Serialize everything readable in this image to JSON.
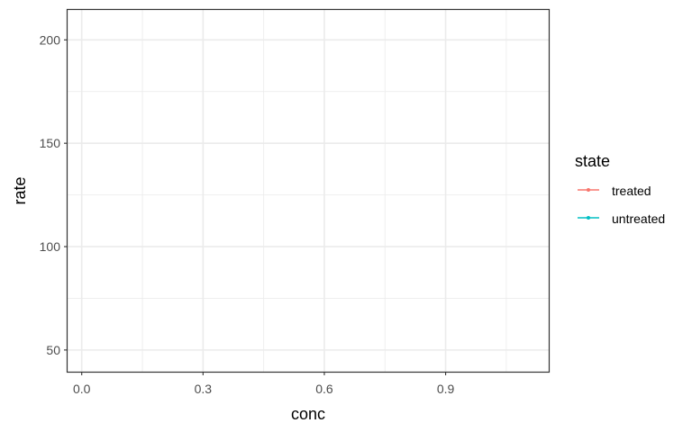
{
  "chart_data": {
    "type": "line",
    "title": "",
    "xlabel": "conc",
    "ylabel": "rate",
    "xlim": [
      -0.035,
      1.155
    ],
    "ylim": [
      39.5,
      214.5
    ],
    "x_ticks": [
      0.0,
      0.3,
      0.6,
      0.9
    ],
    "x_tick_labels": [
      "0.0",
      "0.3",
      "0.6",
      "0.9"
    ],
    "y_ticks": [
      50,
      100,
      150,
      200
    ],
    "y_tick_labels": [
      "50",
      "100",
      "150",
      "200"
    ],
    "grid": true,
    "legend_title": "state",
    "legend_position": "right",
    "series": [
      {
        "name": "treated",
        "color": "#F8766D",
        "x": [],
        "y": []
      },
      {
        "name": "untreated",
        "color": "#00BFC4",
        "x": [],
        "y": []
      }
    ]
  }
}
